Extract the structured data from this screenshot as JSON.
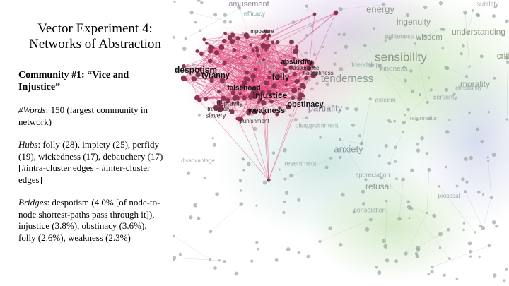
{
  "slide": {
    "title": [
      "Vector Experiment 4:",
      "Networks of Abstraction"
    ],
    "heading": "Community #1: “Vice and Injustice”",
    "words": {
      "label": "#Words",
      "text": ": 150 (largest community in network)"
    },
    "hubs": {
      "label": "Hubs",
      "text": ": folly (28), impiety (25), perfidy (19), wickedness (17), debauchery (17)",
      "note": "[#intra-cluster edges - #inter-cluster edges]"
    },
    "bridges": {
      "label": "Bridges",
      "text": ": despotism (4.0% [of node-to-node shortest-paths pass through it]), injustice (3.8%), obstinacy (3.6%), folly (2.6%), weakness (2.3%)"
    }
  },
  "network": {
    "labels": [
      "amusement",
      "efficacy",
      "energy",
      "ingenuity",
      "subtlety",
      "wisdom",
      "understanding",
      "sensibility",
      "critic",
      "imposture",
      "despotism",
      "tyranny",
      "absurdity",
      "folly",
      "assurance",
      "haughtiness",
      "friendship",
      "kindness",
      "tenderness",
      "morality",
      "falsehood",
      "injustice",
      "obstinacy",
      "partiality",
      "esteem",
      "certainty",
      "depravity",
      "treachery",
      "slavery",
      "weakness",
      "punishment",
      "anxiety",
      "disappointment",
      "resentment",
      "disadvantage",
      "refusal",
      "appreciation",
      "consolation",
      "proposal",
      "christianity",
      "reformation",
      "politeness"
    ]
  }
}
